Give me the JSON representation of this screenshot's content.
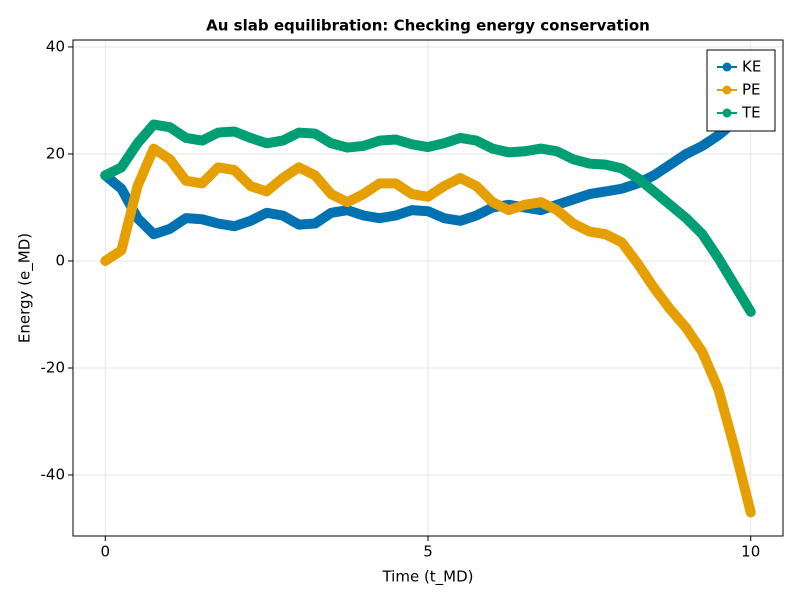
{
  "chart_data": {
    "type": "line",
    "title": "Au slab equilibration: Checking energy conservation",
    "x_label": "Time (t_MD)",
    "y_label": "Energy (e_MD)",
    "x": [
      0,
      0.25,
      0.5,
      0.75,
      1,
      1.25,
      1.5,
      1.75,
      2,
      2.25,
      2.5,
      2.75,
      3,
      3.25,
      3.5,
      3.75,
      4,
      4.25,
      4.5,
      4.75,
      5,
      5.25,
      5.5,
      5.75,
      6,
      6.25,
      6.5,
      6.75,
      7,
      7.25,
      7.5,
      7.75,
      8,
      8.25,
      8.5,
      8.75,
      9,
      9.25,
      9.5,
      9.75,
      10
    ],
    "series": [
      {
        "name": "KE",
        "color": "#0072b2",
        "values": [
          16,
          13.5,
          8,
          5,
          6,
          8,
          7.8,
          7,
          6.5,
          7.5,
          9,
          8.5,
          6.8,
          7,
          9,
          9.5,
          8.5,
          8,
          8.5,
          9.5,
          9.3,
          8,
          7.5,
          8.5,
          10,
          10.5,
          10,
          9.5,
          10.5,
          11.5,
          12.5,
          13,
          13.5,
          14.5,
          16,
          18,
          20,
          21.5,
          23.5,
          26,
          30
        ]
      },
      {
        "name": "PE",
        "color": "#e69f00",
        "values": [
          0,
          2,
          14,
          21,
          19,
          15,
          14.5,
          17.5,
          17,
          14,
          13,
          15.5,
          17.5,
          16,
          12.5,
          11,
          12.5,
          14.5,
          14.5,
          12.5,
          12,
          14,
          15.5,
          14,
          11,
          9.5,
          10.5,
          11,
          9.5,
          7,
          5.5,
          5,
          3.5,
          -0.5,
          -5,
          -9,
          -12.5,
          -17,
          -24,
          -35,
          -47
        ]
      },
      {
        "name": "TE",
        "color": "#009e73",
        "values": [
          16,
          17.5,
          22,
          25.5,
          25,
          23,
          22.5,
          24,
          24.2,
          23,
          22,
          22.5,
          24,
          23.8,
          22,
          21.2,
          21.5,
          22.5,
          22.7,
          21.8,
          21.3,
          22,
          23,
          22.5,
          21,
          20.3,
          20.5,
          21,
          20.5,
          19,
          18.2,
          18,
          17.3,
          15.5,
          13,
          10.5,
          8,
          5,
          0.5,
          -4.5,
          -9.5
        ]
      }
    ],
    "xlim": [
      -0.5,
      10.5
    ],
    "xticks": [
      0,
      5,
      10
    ],
    "ylim": [
      -51.4,
      41.3
    ],
    "yticks": [
      -40,
      -20,
      0,
      20,
      40
    ],
    "grid": true,
    "legend": "top-right"
  }
}
